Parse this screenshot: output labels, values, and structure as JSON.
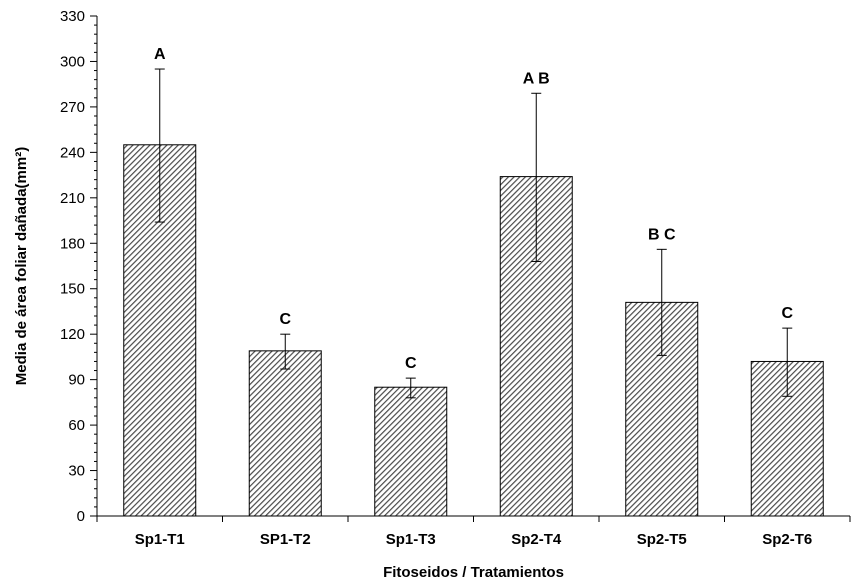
{
  "chart_data": {
    "type": "bar",
    "title": "",
    "xlabel": "Fitoseidos / Tratamientos",
    "ylabel": "Media de área foliar dañada(mm²)",
    "ylim": [
      0,
      330
    ],
    "yticks": [
      0,
      30,
      60,
      90,
      120,
      150,
      180,
      210,
      240,
      270,
      300,
      330
    ],
    "categories": [
      "Sp1-T1",
      "SP1-T2",
      "Sp1-T3",
      "Sp2-T4",
      "Sp2-T5",
      "Sp2-T6"
    ],
    "values": [
      245,
      109,
      85,
      224,
      141,
      102
    ],
    "error_low": [
      194,
      97,
      78,
      168,
      106,
      79
    ],
    "error_high": [
      295,
      120,
      91,
      279,
      176,
      124
    ],
    "significance_labels": [
      "A",
      "C",
      "C",
      "A B",
      "B C",
      "C"
    ],
    "bar_fill": "hatched",
    "grid": false,
    "legend": "none"
  },
  "colors": {
    "bar_hatch": "#4a4a4a",
    "bar_background": "#ffffff",
    "axis": "#000000"
  }
}
